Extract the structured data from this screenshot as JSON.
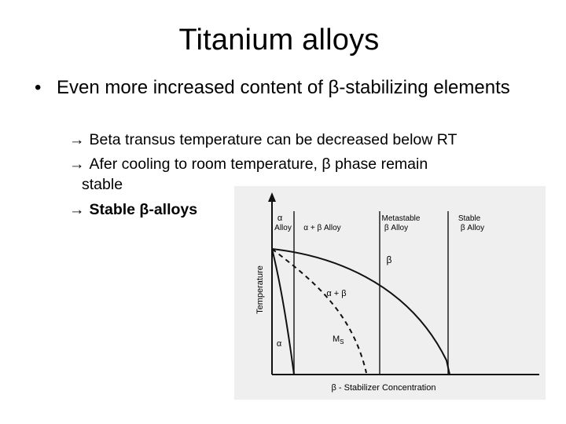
{
  "slide": {
    "title": "Titanium alloys",
    "bullet_symbol": "•",
    "bullet_text": "Even more increased content of β-stabilizing elements",
    "arrow_symbol": "→",
    "sub_points": [
      "Beta transus temperature can be decreased below RT",
      "Afer cooling to room temperature, β phase remain",
      "Stable β-alloys"
    ],
    "sub_point_2_continued": "stable"
  },
  "figure": {
    "top_labels": {
      "alpha_alloy_1": "α",
      "alpha_alloy_2": "Alloy",
      "alpha_beta_alloy": "α + β Alloy",
      "metastable_1": "Metastable",
      "metastable_2": "β Alloy",
      "stable_1": "Stable",
      "stable_2": "β Alloy"
    },
    "y_axis_label": "Temperature",
    "x_axis_label": "β - Stabilizer Concentration",
    "region_labels": {
      "beta": "β",
      "alpha_plus_beta": "α + β",
      "ms": "M",
      "ms_sub": "S",
      "alpha": "α"
    }
  }
}
